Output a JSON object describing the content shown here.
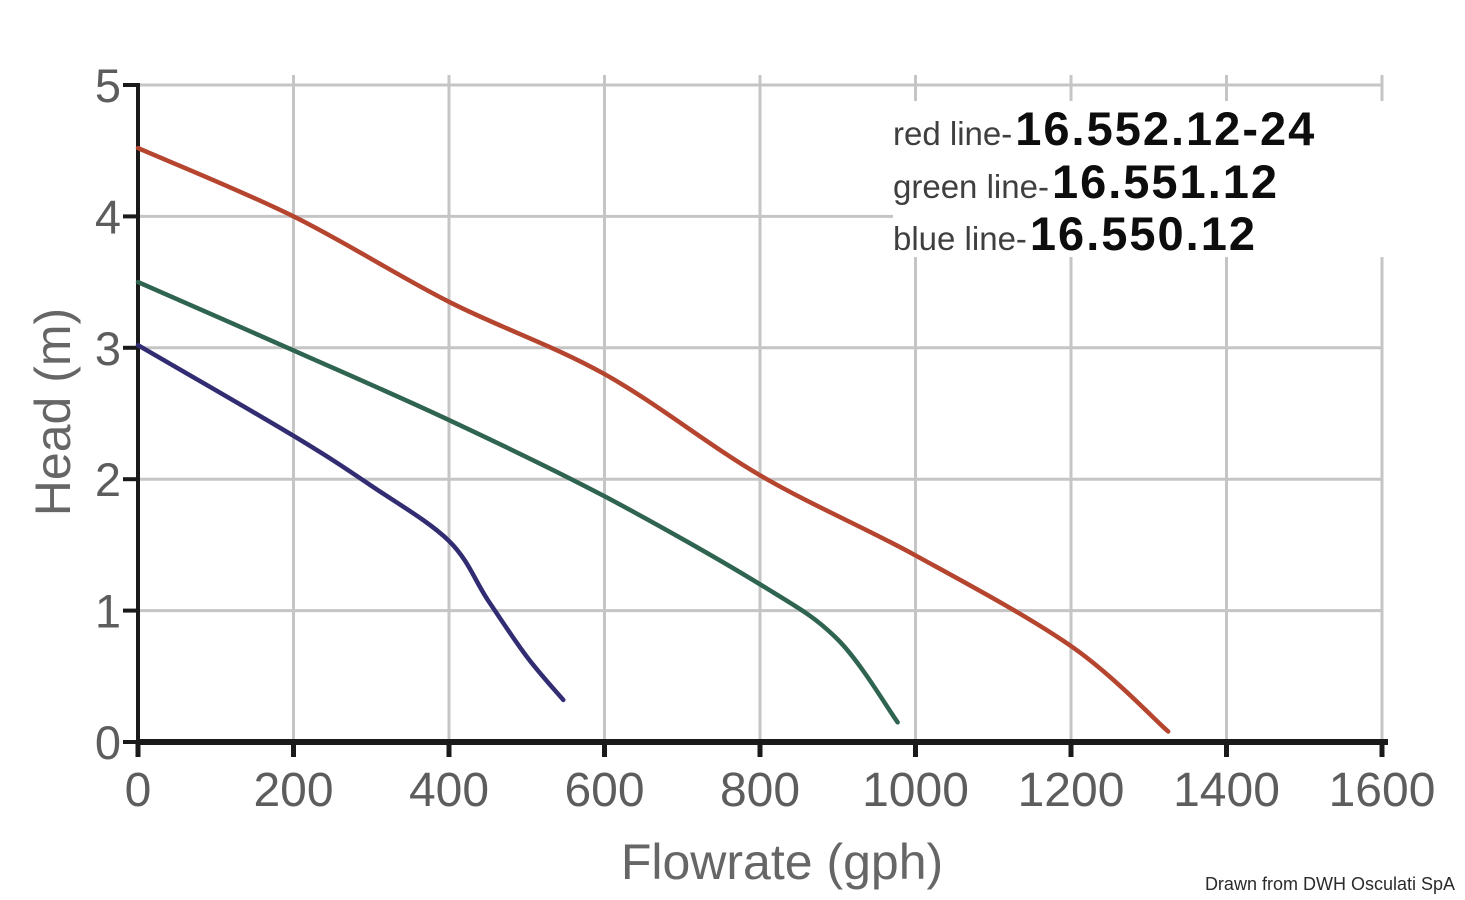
{
  "credit": "Drawn from DWH Osculati SpA",
  "legend": {
    "items": [
      {
        "label": "red line-",
        "value": "16.552.12-24"
      },
      {
        "label": "green line-",
        "value": "16.551.12"
      },
      {
        "label": "blue line-",
        "value": "16.550.12"
      }
    ]
  },
  "chart_data": {
    "type": "line",
    "title": "",
    "xlabel": "Flowrate (gph)",
    "ylabel": "Head (m)",
    "xlim": [
      0,
      1600
    ],
    "ylim": [
      0,
      5
    ],
    "x_ticks": [
      0,
      200,
      400,
      600,
      800,
      1000,
      1200,
      1400,
      1600
    ],
    "y_ticks": [
      0,
      1,
      2,
      3,
      4,
      5
    ],
    "grid": true,
    "legend_position": "top-right",
    "colors": {
      "grid": "#c5c5c5",
      "axis": "#1a1a1a",
      "tick_label": "#5d5d5d",
      "axis_title": "#666666"
    },
    "series": [
      {
        "name": "16.552.12-24",
        "legend_label": "red line-",
        "color": "#b5452f",
        "points": [
          [
            0,
            4.52
          ],
          [
            200,
            4.0
          ],
          [
            400,
            3.35
          ],
          [
            600,
            2.8
          ],
          [
            800,
            2.03
          ],
          [
            1000,
            1.42
          ],
          [
            1200,
            0.73
          ],
          [
            1325,
            0.08
          ]
        ]
      },
      {
        "name": "16.551.12",
        "legend_label": "green line-",
        "color": "#2f6450",
        "points": [
          [
            0,
            3.5
          ],
          [
            200,
            2.98
          ],
          [
            400,
            2.45
          ],
          [
            600,
            1.87
          ],
          [
            800,
            1.2
          ],
          [
            900,
            0.78
          ],
          [
            977,
            0.15
          ]
        ]
      },
      {
        "name": "16.550.12",
        "legend_label": "blue line-",
        "color": "#322c72",
        "points": [
          [
            0,
            3.02
          ],
          [
            200,
            2.33
          ],
          [
            300,
            1.95
          ],
          [
            400,
            1.53
          ],
          [
            450,
            1.08
          ],
          [
            500,
            0.65
          ],
          [
            547,
            0.32
          ]
        ]
      }
    ]
  }
}
